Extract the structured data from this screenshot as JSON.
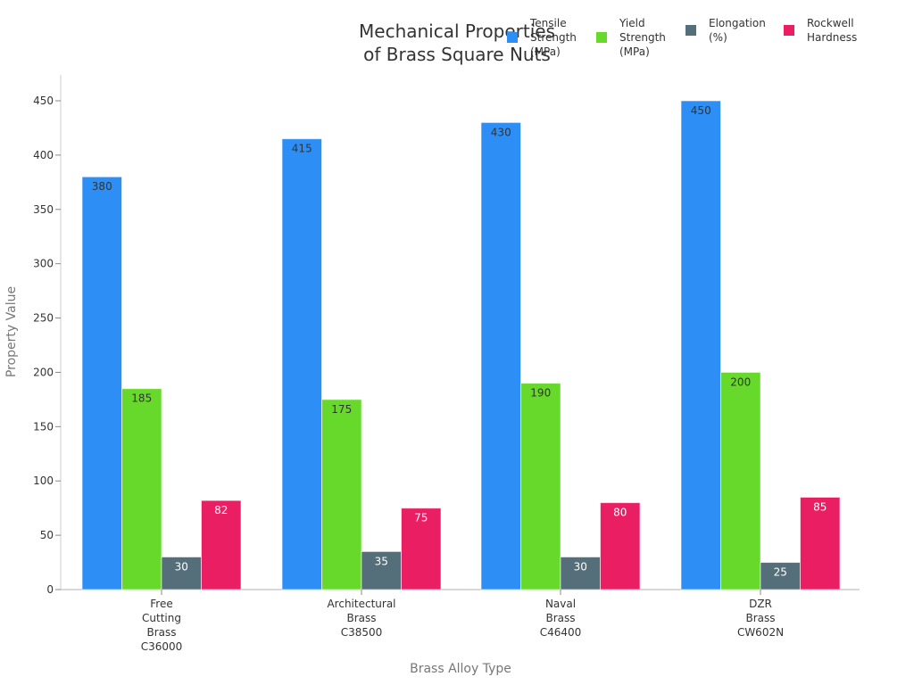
{
  "chart_data": {
    "type": "bar",
    "title": "Mechanical Properties\nof Brass Square Nuts",
    "title_lines": [
      "Mechanical Properties",
      "of Brass Square Nuts"
    ],
    "xlabel": "Brass Alloy Type",
    "ylabel": "Property Value",
    "ylim": [
      0,
      470
    ],
    "yticks": [
      0,
      50,
      100,
      150,
      200,
      250,
      300,
      350,
      400,
      450
    ],
    "grid": false,
    "legend_position": "top-right",
    "categories": [
      "Free Cutting Brass C36000",
      "Architectural Brass C38500",
      "Naval Brass C46400",
      "DZR Brass CW602N"
    ],
    "category_lines": [
      [
        "Free",
        "Cutting",
        "Brass",
        "C36000"
      ],
      [
        "Architectural",
        "Brass",
        "C38500"
      ],
      [
        "Naval",
        "Brass",
        "C46400"
      ],
      [
        "DZR",
        "Brass",
        "CW602N"
      ]
    ],
    "series": [
      {
        "name": "Tensile Strength (MPa)",
        "legend_lines": [
          "Tensile",
          "Strength",
          "(MPa)"
        ],
        "color": "#2d8ff5",
        "label_color": "#333333",
        "values": [
          380,
          415,
          430,
          450
        ]
      },
      {
        "name": "Yield Strength (MPa)",
        "legend_lines": [
          "Yield",
          "Strength",
          "(MPa)"
        ],
        "color": "#66d92a",
        "label_color": "#333333",
        "values": [
          185,
          175,
          190,
          200
        ]
      },
      {
        "name": "Elongation (%)",
        "legend_lines": [
          "Elongation",
          "(%)"
        ],
        "color": "#546e7a",
        "label_color": "#ffffff",
        "values": [
          30,
          35,
          30,
          25
        ]
      },
      {
        "name": "Rockwell Hardness",
        "legend_lines": [
          "Rockwell",
          "Hardness"
        ],
        "color": "#e91e63",
        "label_color": "#ffffff",
        "values": [
          82,
          75,
          80,
          85
        ]
      }
    ]
  }
}
